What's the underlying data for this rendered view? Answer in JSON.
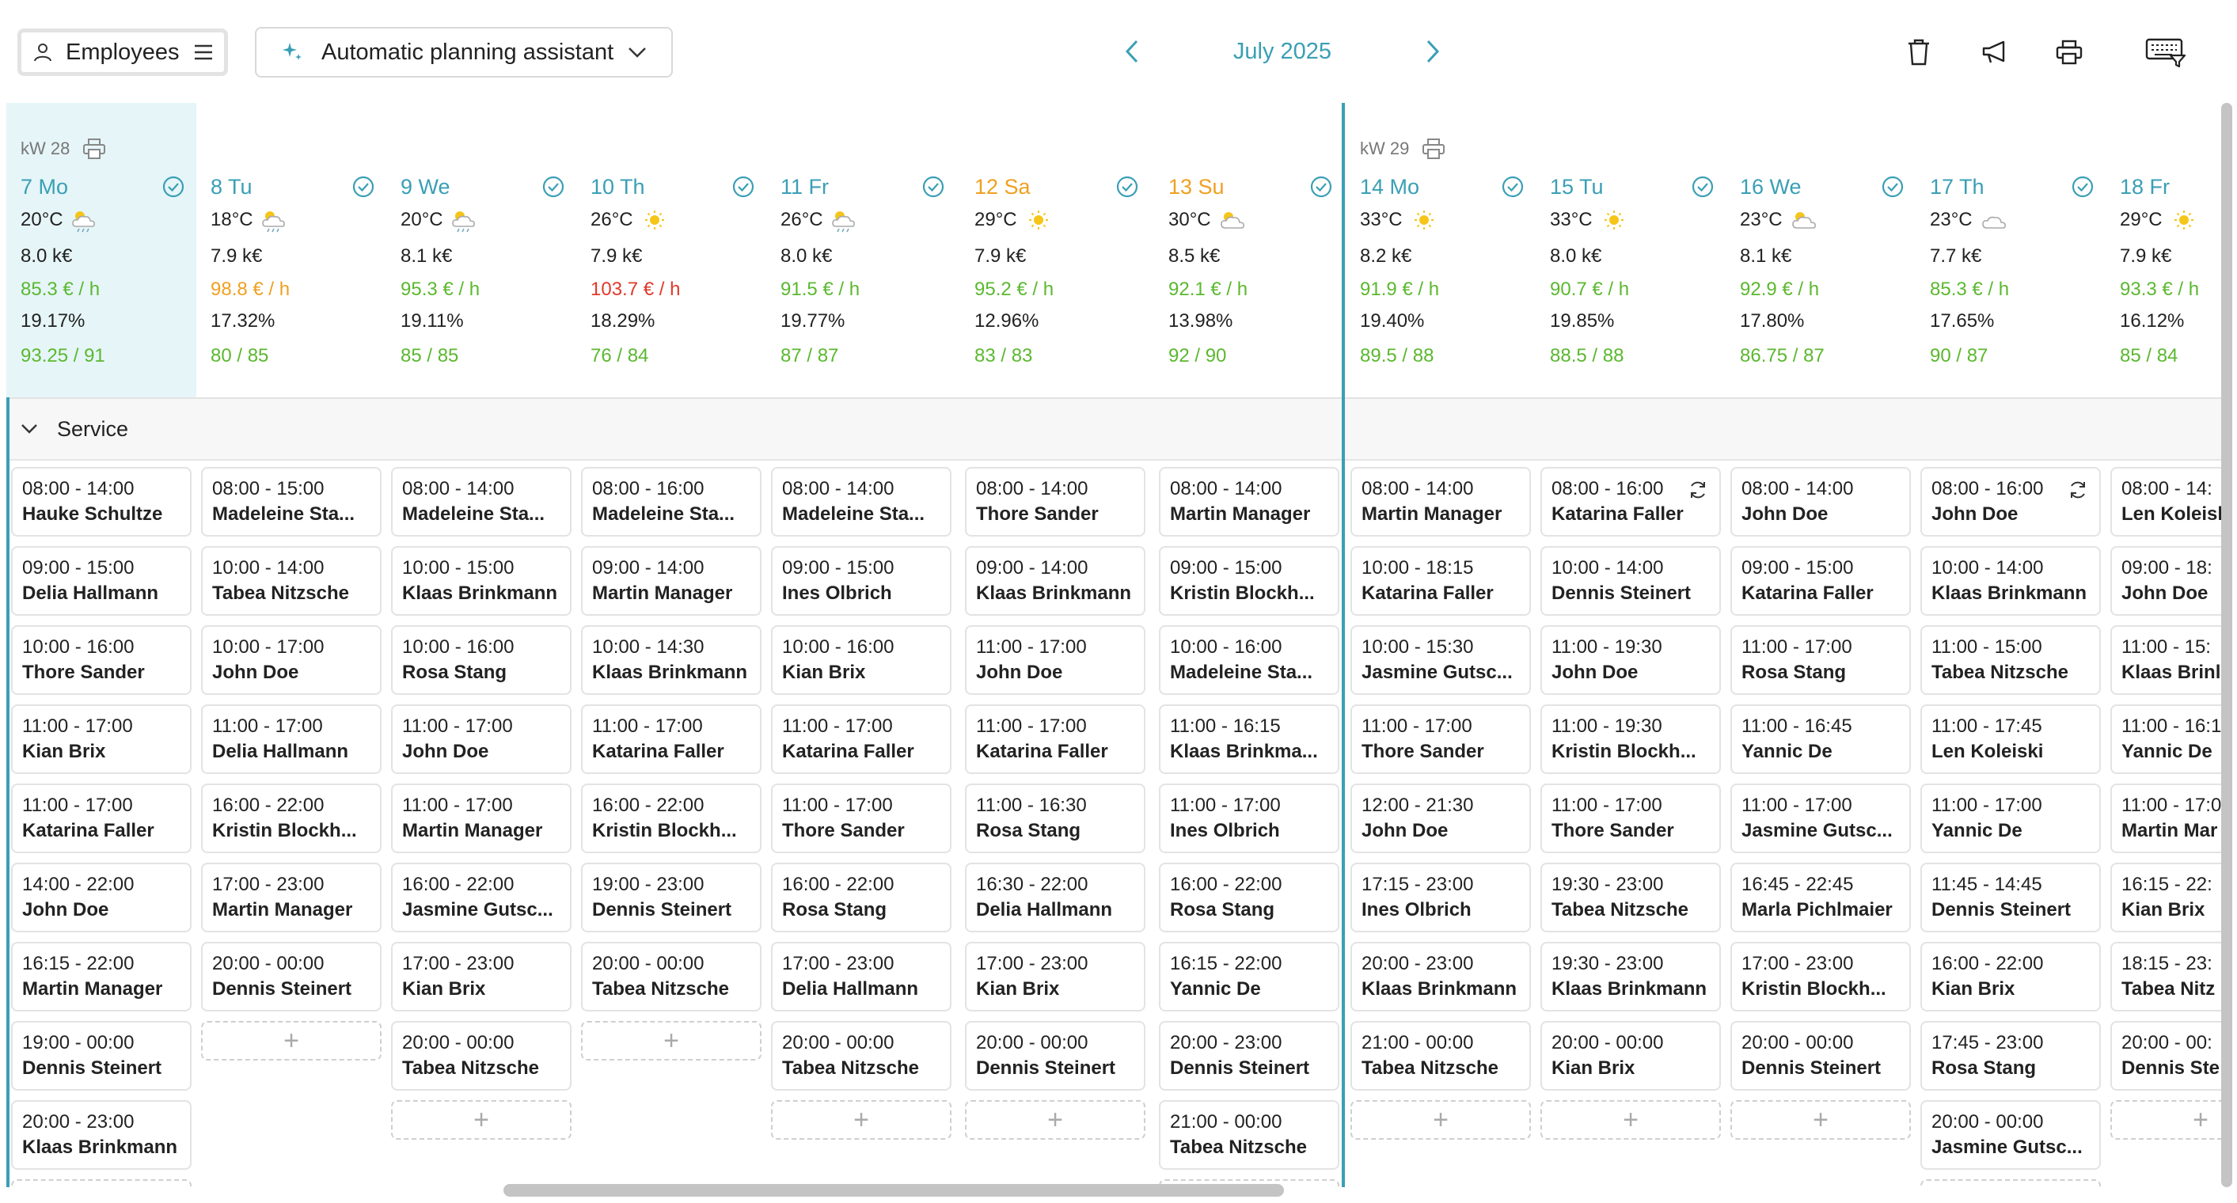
{
  "toolbar": {
    "employees_label": "Employees",
    "planning_label": "Automatic planning assistant",
    "month_label": "July 2025"
  },
  "colors": {
    "accent": "#3a9fb5",
    "weekend": "#f0a020",
    "good": "#5bb82f",
    "warn_orange": "#f0a020",
    "bad": "#e0392a",
    "today_bg": "#e6f5f8"
  },
  "section": {
    "label": "Service"
  },
  "weeks": [
    {
      "label": "kW 28"
    },
    {
      "label": "kW 29"
    }
  ],
  "add_label": "+",
  "days": [
    {
      "date": "7 Mo",
      "weekend": false,
      "today": true,
      "temp": "20°C",
      "weather": "rain-cloud-icon",
      "sales": "8.0 k€",
      "rate": "85.3 € / h",
      "rate_status": "green",
      "pct": "19.17%",
      "hours": "93.25 / 91",
      "shifts": [
        {
          "time": "08:00 - 14:00",
          "name": "Hauke Schultze"
        },
        {
          "time": "09:00 - 15:00",
          "name": "Delia Hallmann"
        },
        {
          "time": "10:00 - 16:00",
          "name": "Thore Sander"
        },
        {
          "time": "11:00 - 17:00",
          "name": "Kian Brix"
        },
        {
          "time": "11:00 - 17:00",
          "name": "Katarina Faller"
        },
        {
          "time": "14:00 - 22:00",
          "name": "John Doe"
        },
        {
          "time": "16:15 - 22:00",
          "name": "Martin Manager"
        },
        {
          "time": "19:00 - 00:00",
          "name": "Dennis Steinert"
        },
        {
          "time": "20:00 - 23:00",
          "name": "Klaas Brinkmann"
        }
      ]
    },
    {
      "date": "8 Tu",
      "weekend": false,
      "today": false,
      "temp": "18°C",
      "weather": "rain-cloud-icon",
      "sales": "7.9 k€",
      "rate": "98.8 € / h",
      "rate_status": "orange",
      "pct": "17.32%",
      "hours": "80 / 85",
      "shifts": [
        {
          "time": "08:00 - 15:00",
          "name": "Madeleine Sta..."
        },
        {
          "time": "10:00 - 14:00",
          "name": "Tabea Nitzsche"
        },
        {
          "time": "10:00 - 17:00",
          "name": "John Doe"
        },
        {
          "time": "11:00 - 17:00",
          "name": "Delia Hallmann"
        },
        {
          "time": "16:00 - 22:00",
          "name": "Kristin Blockh..."
        },
        {
          "time": "17:00 - 23:00",
          "name": "Martin Manager"
        },
        {
          "time": "20:00 - 00:00",
          "name": "Dennis Steinert"
        }
      ]
    },
    {
      "date": "9 We",
      "weekend": false,
      "today": false,
      "temp": "20°C",
      "weather": "rain-cloud-icon",
      "sales": "8.1 k€",
      "rate": "95.3 € / h",
      "rate_status": "green",
      "pct": "19.11%",
      "hours": "85 / 85",
      "shifts": [
        {
          "time": "08:00 - 14:00",
          "name": "Madeleine Sta..."
        },
        {
          "time": "10:00 - 15:00",
          "name": "Klaas Brinkmann"
        },
        {
          "time": "10:00 - 16:00",
          "name": "Rosa Stang"
        },
        {
          "time": "11:00 - 17:00",
          "name": "John Doe"
        },
        {
          "time": "11:00 - 17:00",
          "name": "Martin Manager"
        },
        {
          "time": "16:00 - 22:00",
          "name": "Jasmine Gutsc..."
        },
        {
          "time": "17:00 - 23:00",
          "name": "Kian Brix"
        },
        {
          "time": "20:00 - 00:00",
          "name": "Tabea Nitzsche"
        }
      ]
    },
    {
      "date": "10 Th",
      "weekend": false,
      "today": false,
      "temp": "26°C",
      "weather": "sun-icon",
      "sales": "7.9 k€",
      "rate": "103.7 € / h",
      "rate_status": "red",
      "pct": "18.29%",
      "hours": "76 / 84",
      "shifts": [
        {
          "time": "08:00 - 16:00",
          "name": "Madeleine Sta..."
        },
        {
          "time": "09:00 - 14:00",
          "name": "Martin Manager"
        },
        {
          "time": "10:00 - 14:30",
          "name": "Klaas Brinkmann"
        },
        {
          "time": "11:00 - 17:00",
          "name": "Katarina Faller"
        },
        {
          "time": "16:00 - 22:00",
          "name": "Kristin Blockh..."
        },
        {
          "time": "19:00 - 23:00",
          "name": "Dennis Steinert"
        },
        {
          "time": "20:00 - 00:00",
          "name": "Tabea Nitzsche"
        }
      ]
    },
    {
      "date": "11 Fr",
      "weekend": false,
      "today": false,
      "temp": "26°C",
      "weather": "rain-cloud-icon",
      "sales": "8.0 k€",
      "rate": "91.5 € / h",
      "rate_status": "green",
      "pct": "19.77%",
      "hours": "87 / 87",
      "shifts": [
        {
          "time": "08:00 - 14:00",
          "name": "Madeleine Sta..."
        },
        {
          "time": "09:00 - 15:00",
          "name": "Ines Olbrich"
        },
        {
          "time": "10:00 - 16:00",
          "name": "Kian Brix"
        },
        {
          "time": "11:00 - 17:00",
          "name": "Katarina Faller"
        },
        {
          "time": "11:00 - 17:00",
          "name": "Thore Sander"
        },
        {
          "time": "16:00 - 22:00",
          "name": "Rosa Stang"
        },
        {
          "time": "17:00 - 23:00",
          "name": "Delia Hallmann"
        },
        {
          "time": "20:00 - 00:00",
          "name": "Tabea Nitzsche"
        }
      ]
    },
    {
      "date": "12 Sa",
      "weekend": true,
      "today": false,
      "temp": "29°C",
      "weather": "sun-icon",
      "sales": "7.9 k€",
      "rate": "95.2 € / h",
      "rate_status": "green",
      "pct": "12.96%",
      "hours": "83 / 83",
      "shifts": [
        {
          "time": "08:00 - 14:00",
          "name": "Thore Sander"
        },
        {
          "time": "09:00 - 14:00",
          "name": "Klaas Brinkmann"
        },
        {
          "time": "11:00 - 17:00",
          "name": "John Doe"
        },
        {
          "time": "11:00 - 17:00",
          "name": "Katarina Faller"
        },
        {
          "time": "11:00 - 16:30",
          "name": "Rosa Stang"
        },
        {
          "time": "16:30 - 22:00",
          "name": "Delia Hallmann"
        },
        {
          "time": "17:00 - 23:00",
          "name": "Kian Brix"
        },
        {
          "time": "20:00 - 00:00",
          "name": "Dennis Steinert"
        }
      ]
    },
    {
      "date": "13 Su",
      "weekend": true,
      "today": false,
      "temp": "30°C",
      "weather": "partly-cloudy-icon",
      "sales": "8.5 k€",
      "rate": "92.1 € / h",
      "rate_status": "green",
      "pct": "13.98%",
      "hours": "92 / 90",
      "shifts": [
        {
          "time": "08:00 - 14:00",
          "name": "Martin Manager"
        },
        {
          "time": "09:00 - 15:00",
          "name": "Kristin Blockh..."
        },
        {
          "time": "10:00 - 16:00",
          "name": "Madeleine Sta..."
        },
        {
          "time": "11:00 - 16:15",
          "name": "Klaas Brinkma..."
        },
        {
          "time": "11:00 - 17:00",
          "name": "Ines Olbrich"
        },
        {
          "time": "16:00 - 22:00",
          "name": "Rosa Stang"
        },
        {
          "time": "16:15 - 22:00",
          "name": "Yannic De"
        },
        {
          "time": "20:00 - 23:00",
          "name": "Dennis Steinert"
        },
        {
          "time": "21:00 - 00:00",
          "name": "Tabea Nitzsche"
        }
      ]
    },
    {
      "date": "14 Mo",
      "weekend": false,
      "today": false,
      "temp": "33°C",
      "weather": "sun-icon",
      "sales": "8.2 k€",
      "rate": "91.9 € / h",
      "rate_status": "green",
      "pct": "19.40%",
      "hours": "89.5 / 88",
      "shifts": [
        {
          "time": "08:00 - 14:00",
          "name": "Martin Manager"
        },
        {
          "time": "10:00 - 18:15",
          "name": "Katarina Faller"
        },
        {
          "time": "10:00 - 15:30",
          "name": "Jasmine Gutsc..."
        },
        {
          "time": "11:00 - 17:00",
          "name": "Thore Sander"
        },
        {
          "time": "12:00 - 21:30",
          "name": "John Doe"
        },
        {
          "time": "17:15 - 23:00",
          "name": "Ines Olbrich"
        },
        {
          "time": "20:00 - 23:00",
          "name": "Klaas Brinkmann"
        },
        {
          "time": "21:00 - 00:00",
          "name": "Tabea Nitzsche"
        }
      ]
    },
    {
      "date": "15 Tu",
      "weekend": false,
      "today": false,
      "temp": "33°C",
      "weather": "sun-icon",
      "sales": "8.0 k€",
      "rate": "90.7 € / h",
      "rate_status": "green",
      "pct": "19.85%",
      "hours": "88.5 / 88",
      "shifts": [
        {
          "time": "08:00 - 16:00",
          "name": "Katarina Faller",
          "sync": true
        },
        {
          "time": "10:00 - 14:00",
          "name": "Dennis Steinert"
        },
        {
          "time": "11:00 - 19:30",
          "name": "John Doe"
        },
        {
          "time": "11:00 - 19:30",
          "name": "Kristin Blockh..."
        },
        {
          "time": "11:00 - 17:00",
          "name": "Thore Sander"
        },
        {
          "time": "19:30 - 23:00",
          "name": "Tabea Nitzsche"
        },
        {
          "time": "19:30 - 23:00",
          "name": "Klaas Brinkmann"
        },
        {
          "time": "20:00 - 00:00",
          "name": "Kian Brix"
        }
      ]
    },
    {
      "date": "16 We",
      "weekend": false,
      "today": false,
      "temp": "23°C",
      "weather": "partly-cloudy-icon",
      "sales": "8.1 k€",
      "rate": "92.9 € / h",
      "rate_status": "green",
      "pct": "17.80%",
      "hours": "86.75 / 87",
      "shifts": [
        {
          "time": "08:00 - 14:00",
          "name": "John Doe"
        },
        {
          "time": "09:00 - 15:00",
          "name": "Katarina Faller"
        },
        {
          "time": "11:00 - 17:00",
          "name": "Rosa Stang"
        },
        {
          "time": "11:00 - 16:45",
          "name": "Yannic De"
        },
        {
          "time": "11:00 - 17:00",
          "name": "Jasmine Gutsc..."
        },
        {
          "time": "16:45 - 22:45",
          "name": "Marla Pichlmaier"
        },
        {
          "time": "17:00 - 23:00",
          "name": "Kristin Blockh..."
        },
        {
          "time": "20:00 - 00:00",
          "name": "Dennis Steinert"
        }
      ]
    },
    {
      "date": "17 Th",
      "weekend": false,
      "today": false,
      "temp": "23°C",
      "weather": "cloud-icon",
      "sales": "7.7 k€",
      "rate": "85.3 € / h",
      "rate_status": "green",
      "pct": "17.65%",
      "hours": "90 / 87",
      "shifts": [
        {
          "time": "08:00 - 16:00",
          "name": "John Doe",
          "sync": true
        },
        {
          "time": "10:00 - 14:00",
          "name": "Klaas Brinkmann"
        },
        {
          "time": "11:00 - 15:00",
          "name": "Tabea Nitzsche"
        },
        {
          "time": "11:00 - 17:45",
          "name": "Len Koleiski"
        },
        {
          "time": "11:00 - 17:00",
          "name": "Yannic De"
        },
        {
          "time": "11:45 - 14:45",
          "name": "Dennis Steinert"
        },
        {
          "time": "16:00 - 22:00",
          "name": "Kian Brix"
        },
        {
          "time": "17:45 - 23:00",
          "name": "Rosa Stang"
        },
        {
          "time": "20:00 - 00:00",
          "name": "Jasmine Gutsc..."
        }
      ]
    },
    {
      "date": "18 Fr",
      "weekend": false,
      "today": false,
      "temp": "29°C",
      "weather": "sun-icon",
      "sales": "7.9 k€",
      "rate": "93.3 € / h",
      "rate_status": "green",
      "pct": "16.12%",
      "hours": "85 / 84",
      "shifts": [
        {
          "time": "08:00 - 14:",
          "name": "Len Koleisl"
        },
        {
          "time": "09:00 - 18:",
          "name": "John Doe"
        },
        {
          "time": "11:00 - 15:",
          "name": "Klaas Brinl"
        },
        {
          "time": "11:00 - 16:1",
          "name": "Yannic De"
        },
        {
          "time": "11:00 - 17:0",
          "name": "Martin Mar"
        },
        {
          "time": "16:15 - 22:",
          "name": "Kian Brix"
        },
        {
          "time": "18:15 - 23:",
          "name": "Tabea Nitz"
        },
        {
          "time": "20:00 - 00:",
          "name": "Dennis Ste"
        }
      ]
    }
  ]
}
